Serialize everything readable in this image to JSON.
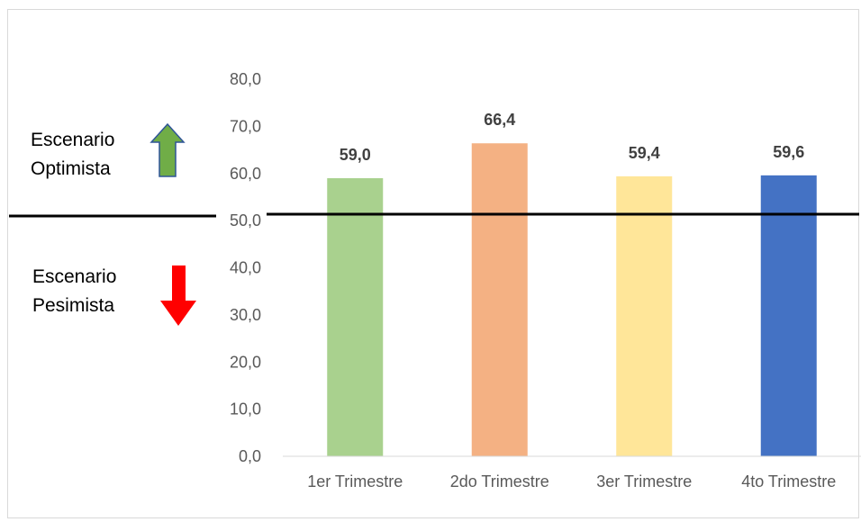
{
  "chart_data": {
    "type": "bar",
    "categories": [
      "1er Trimestre",
      "2do Trimestre",
      "3er Trimestre",
      "4to Trimestre"
    ],
    "values": [
      59.0,
      66.4,
      59.4,
      59.6
    ],
    "value_labels": [
      "59,0",
      "66,4",
      "59,4",
      "59,6"
    ],
    "bar_colors": [
      "#a9d18e",
      "#f4b183",
      "#ffe699",
      "#4472c4"
    ],
    "yticks": [
      "0,0",
      "10,0",
      "20,0",
      "30,0",
      "40,0",
      "50,0",
      "60,0",
      "70,0",
      "80,0"
    ],
    "ylim": [
      0,
      80
    ],
    "threshold": 50,
    "title": "",
    "xlabel": "",
    "ylabel": "",
    "grid": false,
    "legend": "none"
  },
  "annotations": {
    "optimista_line1": "Escenario",
    "optimista_line2": "Optimista",
    "optimista_icon": "up-arrow-icon",
    "optimista_color": "#70ad47",
    "pesimista_line1": "Escenario",
    "pesimista_line2": "Pesimista",
    "pesimista_icon": "down-arrow-icon",
    "pesimista_color": "#ff0000"
  }
}
